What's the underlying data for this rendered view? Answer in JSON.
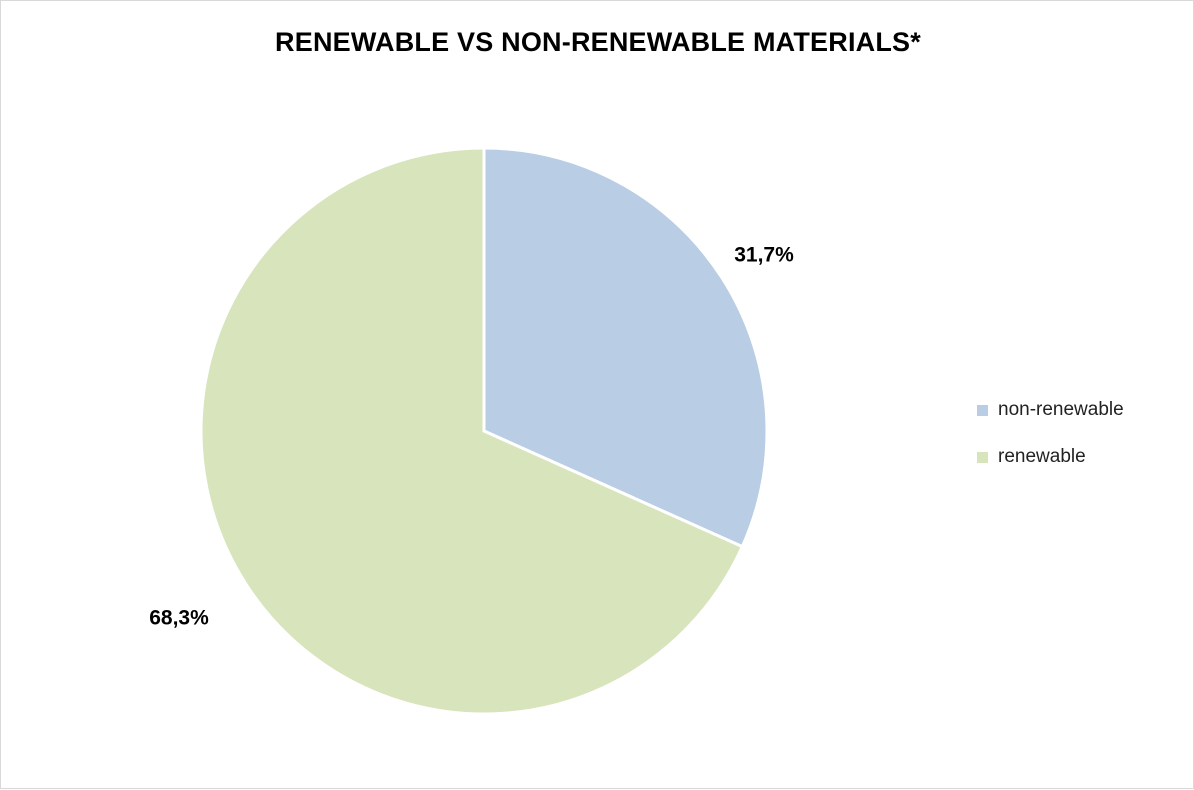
{
  "chart_data": {
    "type": "pie",
    "title": "RENEWABLE VS NON-RENEWABLE MATERIALS*",
    "categories": [
      "non-renewable",
      "renewable"
    ],
    "values": [
      31.7,
      68.3
    ],
    "labels": [
      "31,7%",
      "68,3%"
    ],
    "colors": [
      "#b9cde4",
      "#d8e4bc"
    ],
    "slice_border_color": "#ffffff",
    "legend_position": "right"
  }
}
